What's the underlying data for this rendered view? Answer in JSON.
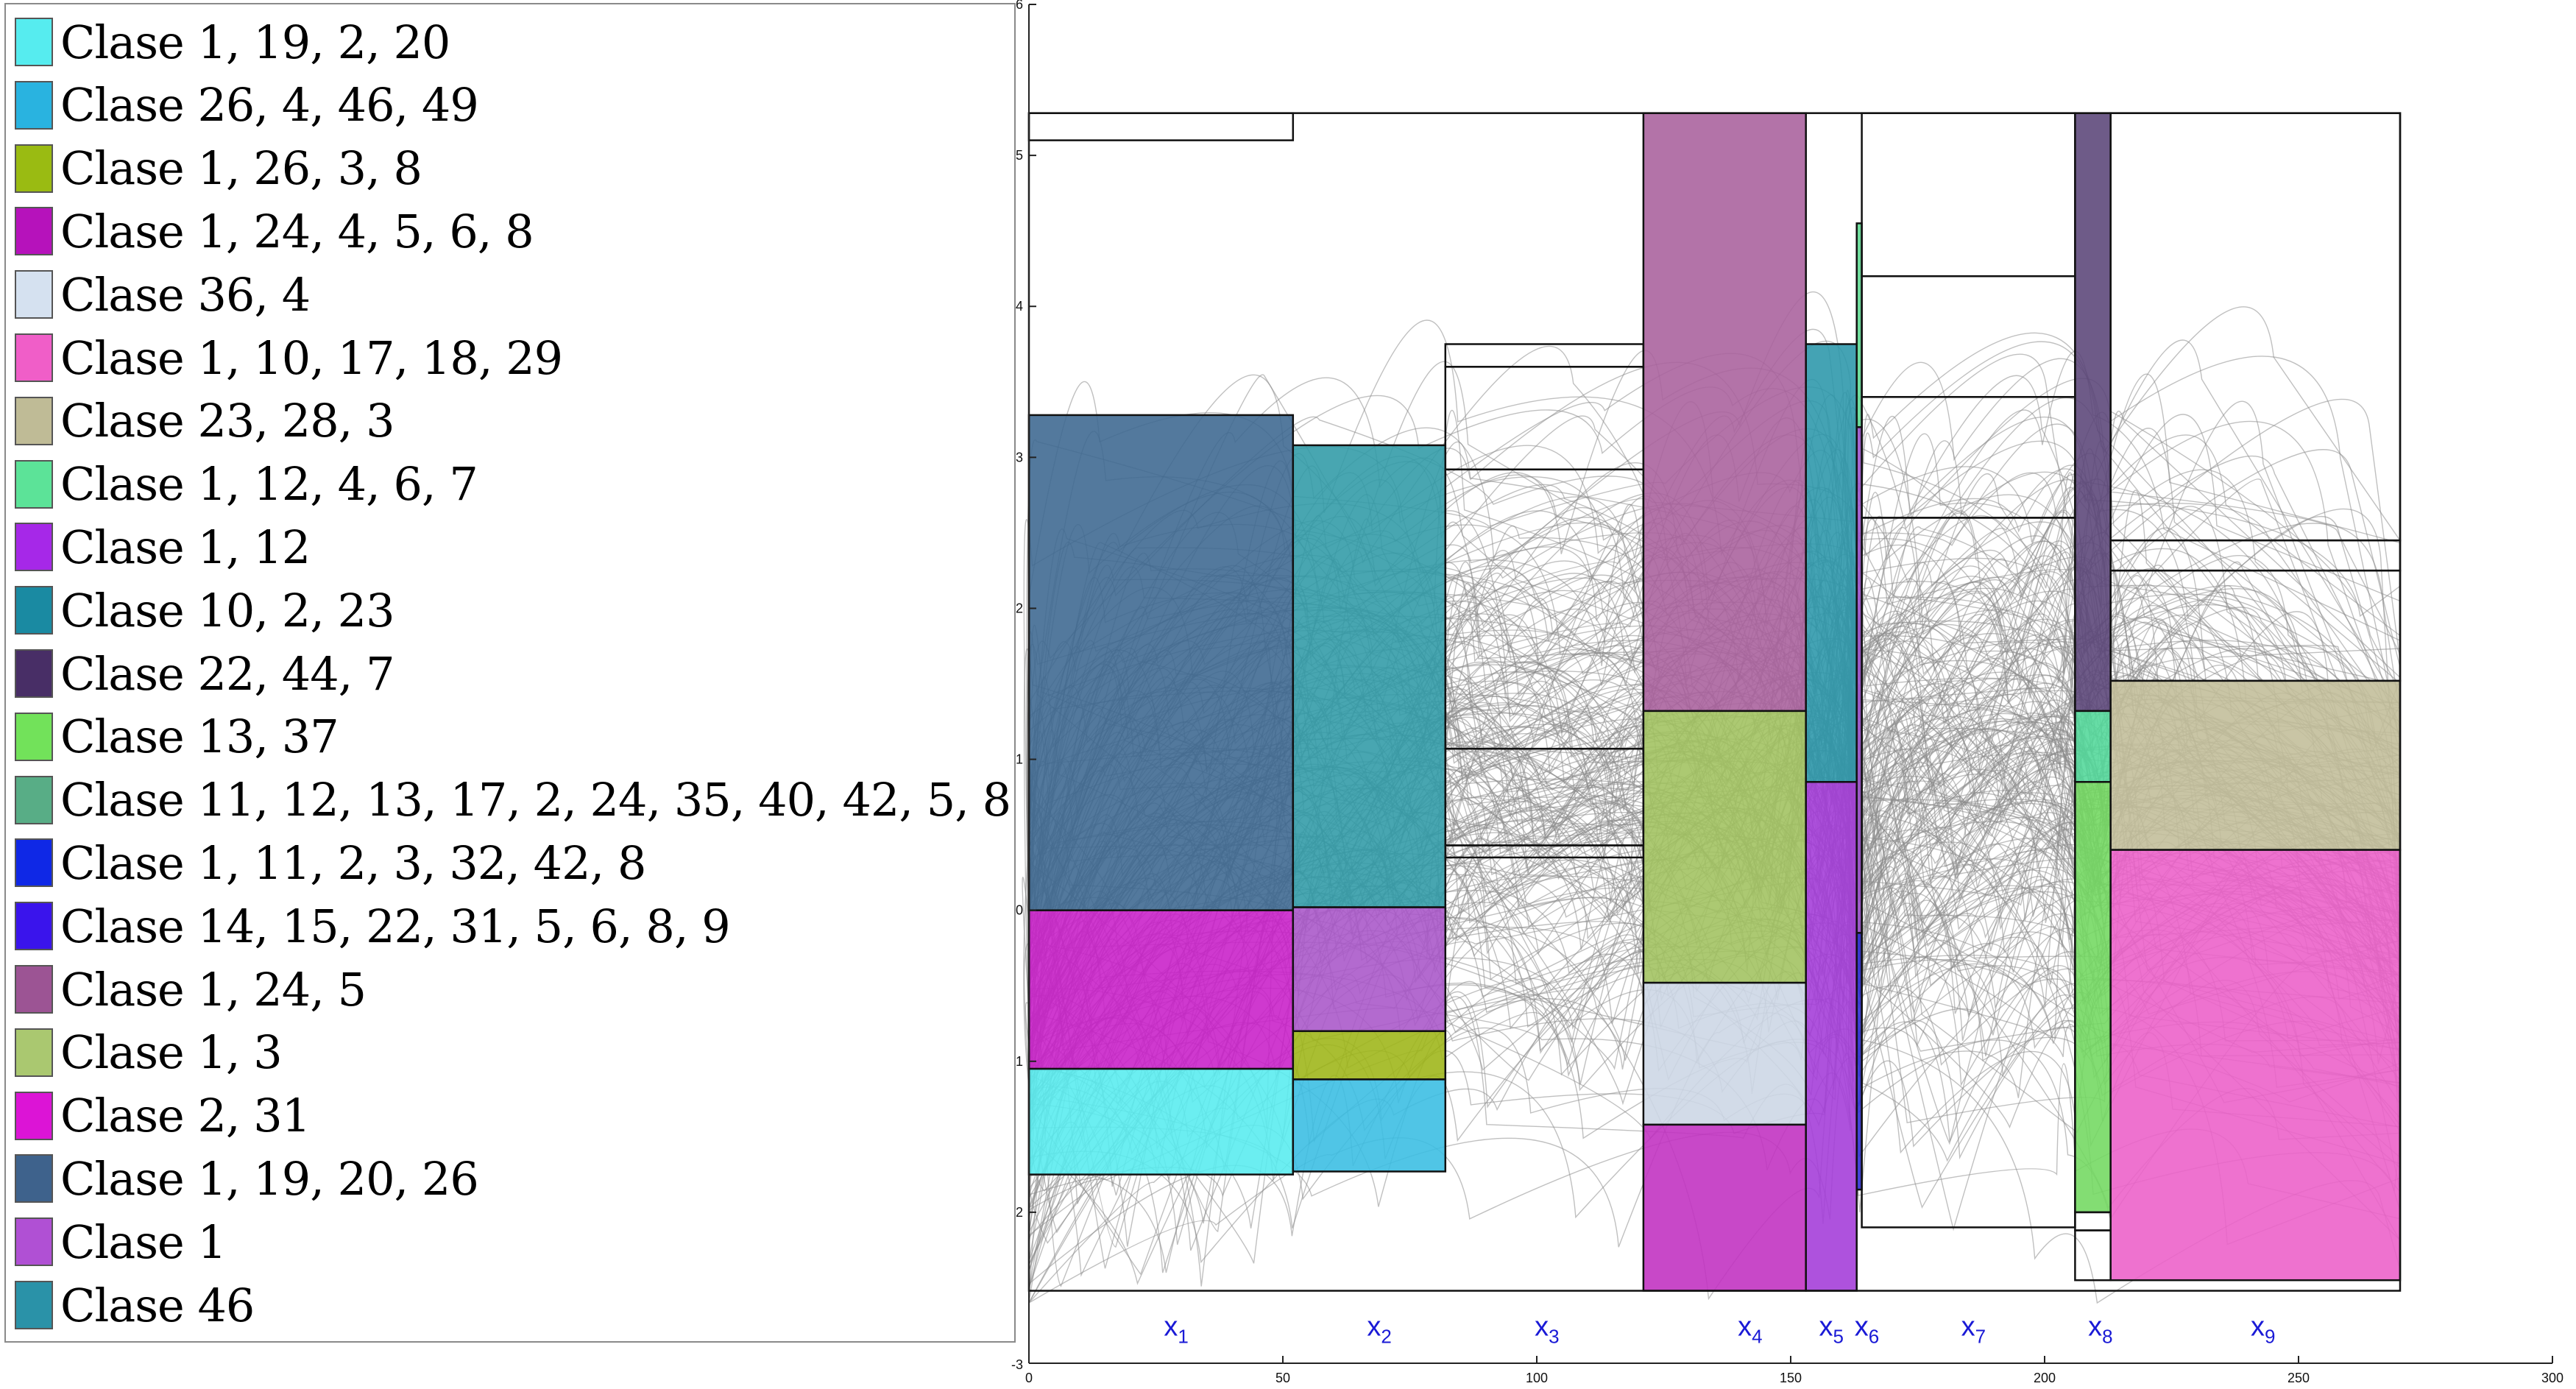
{
  "chart_data": {
    "type": "parallel-coordinates",
    "title": "",
    "xlabel": "",
    "ylabel": "",
    "xlim": [
      0,
      300
    ],
    "ylim": [
      -3,
      6
    ],
    "x_ticks": [
      0,
      50,
      100,
      150,
      200,
      250,
      300
    ],
    "y_ticks": [
      -2,
      -1,
      0,
      1,
      2,
      3,
      4,
      5,
      6
    ],
    "y_tick_labels": [
      "2",
      "1",
      "0",
      "1",
      "2",
      "3",
      "4",
      "5",
      "6"
    ],
    "bottom_tick_label": "-3",
    "grid": false,
    "legend_position": "left",
    "curve_color": "#8c8c8c",
    "variable_label_color": "#1a1ad6",
    "variables": [
      {
        "name": "x",
        "sub": "1",
        "x_start": 0,
        "x_end": 52,
        "label_x": 29
      },
      {
        "name": "x",
        "sub": "2",
        "x_start": 52,
        "x_end": 82,
        "label_x": 69
      },
      {
        "name": "x",
        "sub": "3",
        "x_start": 82,
        "x_end": 121,
        "label_x": 102
      },
      {
        "name": "x",
        "sub": "4",
        "x_start": 121,
        "x_end": 153,
        "label_x": 142
      },
      {
        "name": "x",
        "sub": "5",
        "x_start": 153,
        "x_end": 163,
        "label_x": 158
      },
      {
        "name": "x",
        "sub": "6",
        "x_start": 163,
        "x_end": 164,
        "label_x": 165
      },
      {
        "name": "x",
        "sub": "7",
        "x_start": 164,
        "x_end": 206,
        "label_x": 186
      },
      {
        "name": "x",
        "sub": "8",
        "x_start": 206,
        "x_end": 213,
        "label_x": 211
      },
      {
        "name": "x",
        "sub": "9",
        "x_start": 213,
        "x_end": 270,
        "label_x": 243
      }
    ],
    "boxes": [
      {
        "x0": 0,
        "x1": 52,
        "y0": 5.1,
        "y1": 5.28,
        "color": "none"
      },
      {
        "x0": 0,
        "x1": 52,
        "y0": 0,
        "y1": 3.28,
        "color": "#3b6690"
      },
      {
        "x0": 0,
        "x1": 52,
        "y0": -1.05,
        "y1": 0,
        "color": "#c81ec8"
      },
      {
        "x0": 0,
        "x1": 52,
        "y0": -1.75,
        "y1": -1.05,
        "color": "#56ecef"
      },
      {
        "x0": 52,
        "x1": 82,
        "y0": 0.02,
        "y1": 3.08,
        "color": "#2f9aa6"
      },
      {
        "x0": 52,
        "x1": 82,
        "y0": -0.8,
        "y1": 0.02,
        "color": "#a855c8"
      },
      {
        "x0": 52,
        "x1": 82,
        "y0": -1.12,
        "y1": -0.8,
        "color": "#9db516"
      },
      {
        "x0": 52,
        "x1": 82,
        "y0": -1.73,
        "y1": -1.12,
        "color": "#38bde3"
      },
      {
        "x0": 82,
        "x1": 121,
        "y0": 3.6,
        "y1": 3.75,
        "color": "none"
      },
      {
        "x0": 82,
        "x1": 121,
        "y0": 2.92,
        "y1": 3.6,
        "color": "none"
      },
      {
        "x0": 82,
        "x1": 121,
        "y0": 1.07,
        "y1": 2.92,
        "color": "none"
      },
      {
        "x0": 82,
        "x1": 121,
        "y0": 0.43,
        "y1": 1.07,
        "color": "none"
      },
      {
        "x0": 82,
        "x1": 121,
        "y0": 0.35,
        "y1": 0.43,
        "color": "none"
      },
      {
        "x0": 121,
        "x1": 153,
        "y0": 1.32,
        "y1": 5.28,
        "color": "#a8609c"
      },
      {
        "x0": 121,
        "x1": 153,
        "y0": -0.48,
        "y1": 1.32,
        "color": "#a0c15f"
      },
      {
        "x0": 121,
        "x1": 153,
        "y0": -1.42,
        "y1": -0.48,
        "color": "#ccd6e5"
      },
      {
        "x0": 121,
        "x1": 153,
        "y0": -2.52,
        "y1": -1.42,
        "color": "#c02fc0"
      },
      {
        "x0": 153,
        "x1": 163,
        "y0": 0.85,
        "y1": 3.75,
        "color": "#2a96aa"
      },
      {
        "x0": 153,
        "x1": 163,
        "y0": -2.52,
        "y1": 0.85,
        "color": "#a33ad8"
      },
      {
        "x0": 163,
        "x1": 164,
        "y0": 3.2,
        "y1": 4.55,
        "color": "#5cd890"
      },
      {
        "x0": 163,
        "x1": 164,
        "y0": -0.15,
        "y1": 3.2,
        "color": "#9a50c8"
      },
      {
        "x0": 163,
        "x1": 164,
        "y0": -1.85,
        "y1": -0.15,
        "color": "#2a2ad0"
      },
      {
        "x0": 164,
        "x1": 206,
        "y0": 4.2,
        "y1": 5.28,
        "color": "none"
      },
      {
        "x0": 164,
        "x1": 206,
        "y0": 3.4,
        "y1": 4.2,
        "color": "none"
      },
      {
        "x0": 164,
        "x1": 206,
        "y0": 2.6,
        "y1": 3.4,
        "color": "none"
      },
      {
        "x0": 164,
        "x1": 206,
        "y0": -2.1,
        "y1": 2.6,
        "color": "none"
      },
      {
        "x0": 206,
        "x1": 213,
        "y0": 1.32,
        "y1": 5.28,
        "color": "#5a4478"
      },
      {
        "x0": 206,
        "x1": 213,
        "y0": 0.85,
        "y1": 1.32,
        "color": "#52d89a"
      },
      {
        "x0": 206,
        "x1": 213,
        "y0": -2.0,
        "y1": 0.85,
        "color": "#72d860"
      },
      {
        "x0": 206,
        "x1": 213,
        "y0": -2.12,
        "y1": -2.0,
        "color": "none"
      },
      {
        "x0": 206,
        "x1": 213,
        "y0": -2.45,
        "y1": -2.12,
        "color": "none"
      },
      {
        "x0": 213,
        "x1": 270,
        "y0": 2.45,
        "y1": 5.28,
        "color": "none"
      },
      {
        "x0": 213,
        "x1": 270,
        "y0": 2.25,
        "y1": 2.45,
        "color": "none"
      },
      {
        "x0": 213,
        "x1": 270,
        "y0": 1.52,
        "y1": 2.25,
        "color": "none"
      },
      {
        "x0": 213,
        "x1": 270,
        "y0": 0.4,
        "y1": 1.52,
        "color": "#c2bd98"
      },
      {
        "x0": 213,
        "x1": 270,
        "y0": -2.45,
        "y1": 0.4,
        "color": "#ec5ec8"
      }
    ],
    "legend": [
      {
        "label": "Clase 1, 19, 2, 20",
        "color": "#56ecef"
      },
      {
        "label": "Clase 26, 4, 46, 49",
        "color": "#29b3e0"
      },
      {
        "label": "Clase 1, 26, 3, 8",
        "color": "#9abb12"
      },
      {
        "label": "Clase 1, 24, 4, 5, 6, 8",
        "color": "#b612bb"
      },
      {
        "label": "Clase 36, 4",
        "color": "#d5e1f0"
      },
      {
        "label": "Clase 1, 10, 17, 18, 29",
        "color": "#f05ec8"
      },
      {
        "label": "Clase 23, 28, 3",
        "color": "#bfbb96"
      },
      {
        "label": "Clase 1, 12, 4, 6, 7",
        "color": "#5ce398"
      },
      {
        "label": "Clase 1, 12",
        "color": "#a628e8"
      },
      {
        "label": "Clase 10, 2, 23",
        "color": "#1a8aa2"
      },
      {
        "label": "Clase 22, 44, 7",
        "color": "#482e66"
      },
      {
        "label": "Clase 13, 37",
        "color": "#72e25a"
      },
      {
        "label": "Clase 11, 12, 13, 17, 2, 24, 35, 40, 42, 5, 8",
        "color": "#58ad86"
      },
      {
        "label": "Clase 1, 11, 2, 3, 32, 42, 8",
        "color": "#0f28e6"
      },
      {
        "label": "Clase 14, 15, 22, 31, 5, 6, 8, 9",
        "color": "#3a14ec"
      },
      {
        "label": "Clase 1, 24, 5",
        "color": "#9c5494"
      },
      {
        "label": "Clase 1, 3",
        "color": "#aac870"
      },
      {
        "label": "Clase 2, 31",
        "color": "#dc14d6"
      },
      {
        "label": "Clase 1, 19, 20, 26",
        "color": "#3e628c"
      },
      {
        "label": "Clase 1",
        "color": "#b050d4"
      },
      {
        "label": "Clase 46",
        "color": "#2a92a8"
      }
    ]
  }
}
